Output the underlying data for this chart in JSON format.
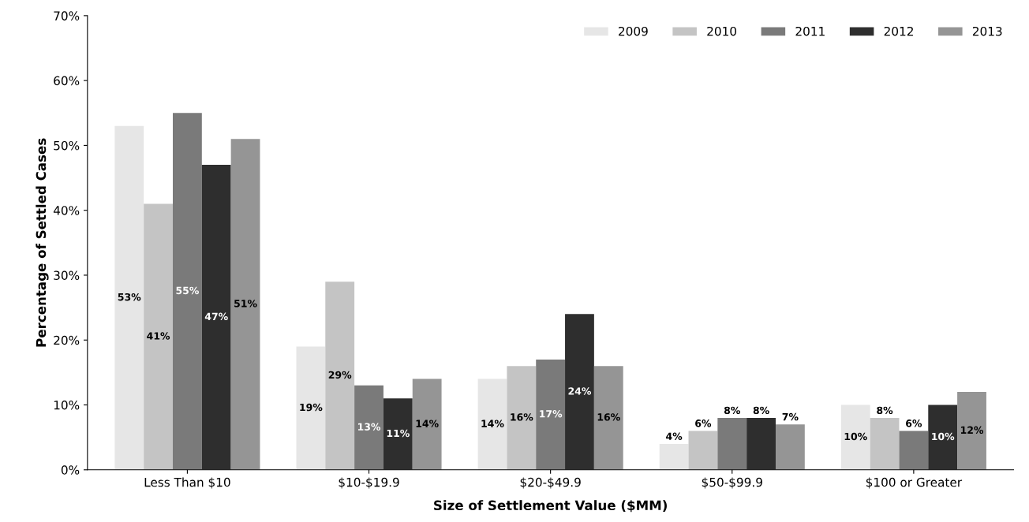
{
  "chart_data": {
    "type": "bar",
    "xlabel": "Size of Settlement Value ($MM)",
    "ylabel": "Percentage of Settled Cases",
    "categories": [
      "Less Than $10",
      "$10-$19.9",
      "$20-$49.9",
      "$50-$99.9",
      "$100 or Greater"
    ],
    "series": [
      {
        "name": "2009",
        "color": "#e6e6e6",
        "values": [
          53,
          19,
          14,
          4,
          10
        ],
        "value_labels": [
          "53%",
          "19%",
          "14%",
          "4%",
          "10%"
        ]
      },
      {
        "name": "2010",
        "color": "#c4c4c4",
        "values": [
          41,
          29,
          16,
          6,
          8
        ],
        "value_labels": [
          "41%",
          "29%",
          "16%",
          "6%",
          "8%"
        ]
      },
      {
        "name": "2011",
        "color": "#7a7a7a",
        "values": [
          55,
          13,
          17,
          8,
          6
        ],
        "value_labels": [
          "55%",
          "13%",
          "17%",
          "8%",
          "6%"
        ]
      },
      {
        "name": "2012",
        "color": "#2e2e2e",
        "values": [
          47,
          11,
          24,
          8,
          10
        ],
        "value_labels": [
          "47%",
          "11%",
          "24%",
          "8%",
          "10%"
        ]
      },
      {
        "name": "2013",
        "color": "#959595",
        "values": [
          51,
          14,
          16,
          7,
          12
        ],
        "value_labels": [
          "51%",
          "14%",
          "16%",
          "7%",
          "12%"
        ]
      }
    ],
    "ylim": [
      0,
      70
    ],
    "yticks": [
      {
        "value": 0,
        "label": "0%"
      },
      {
        "value": 10,
        "label": "10%"
      },
      {
        "value": 20,
        "label": "20%"
      },
      {
        "value": 30,
        "label": "30%"
      },
      {
        "value": 40,
        "label": "40%"
      },
      {
        "value": 50,
        "label": "50%"
      },
      {
        "value": 60,
        "label": "60%"
      },
      {
        "value": 70,
        "label": "70%"
      }
    ],
    "grid": false,
    "legend": "top right"
  }
}
